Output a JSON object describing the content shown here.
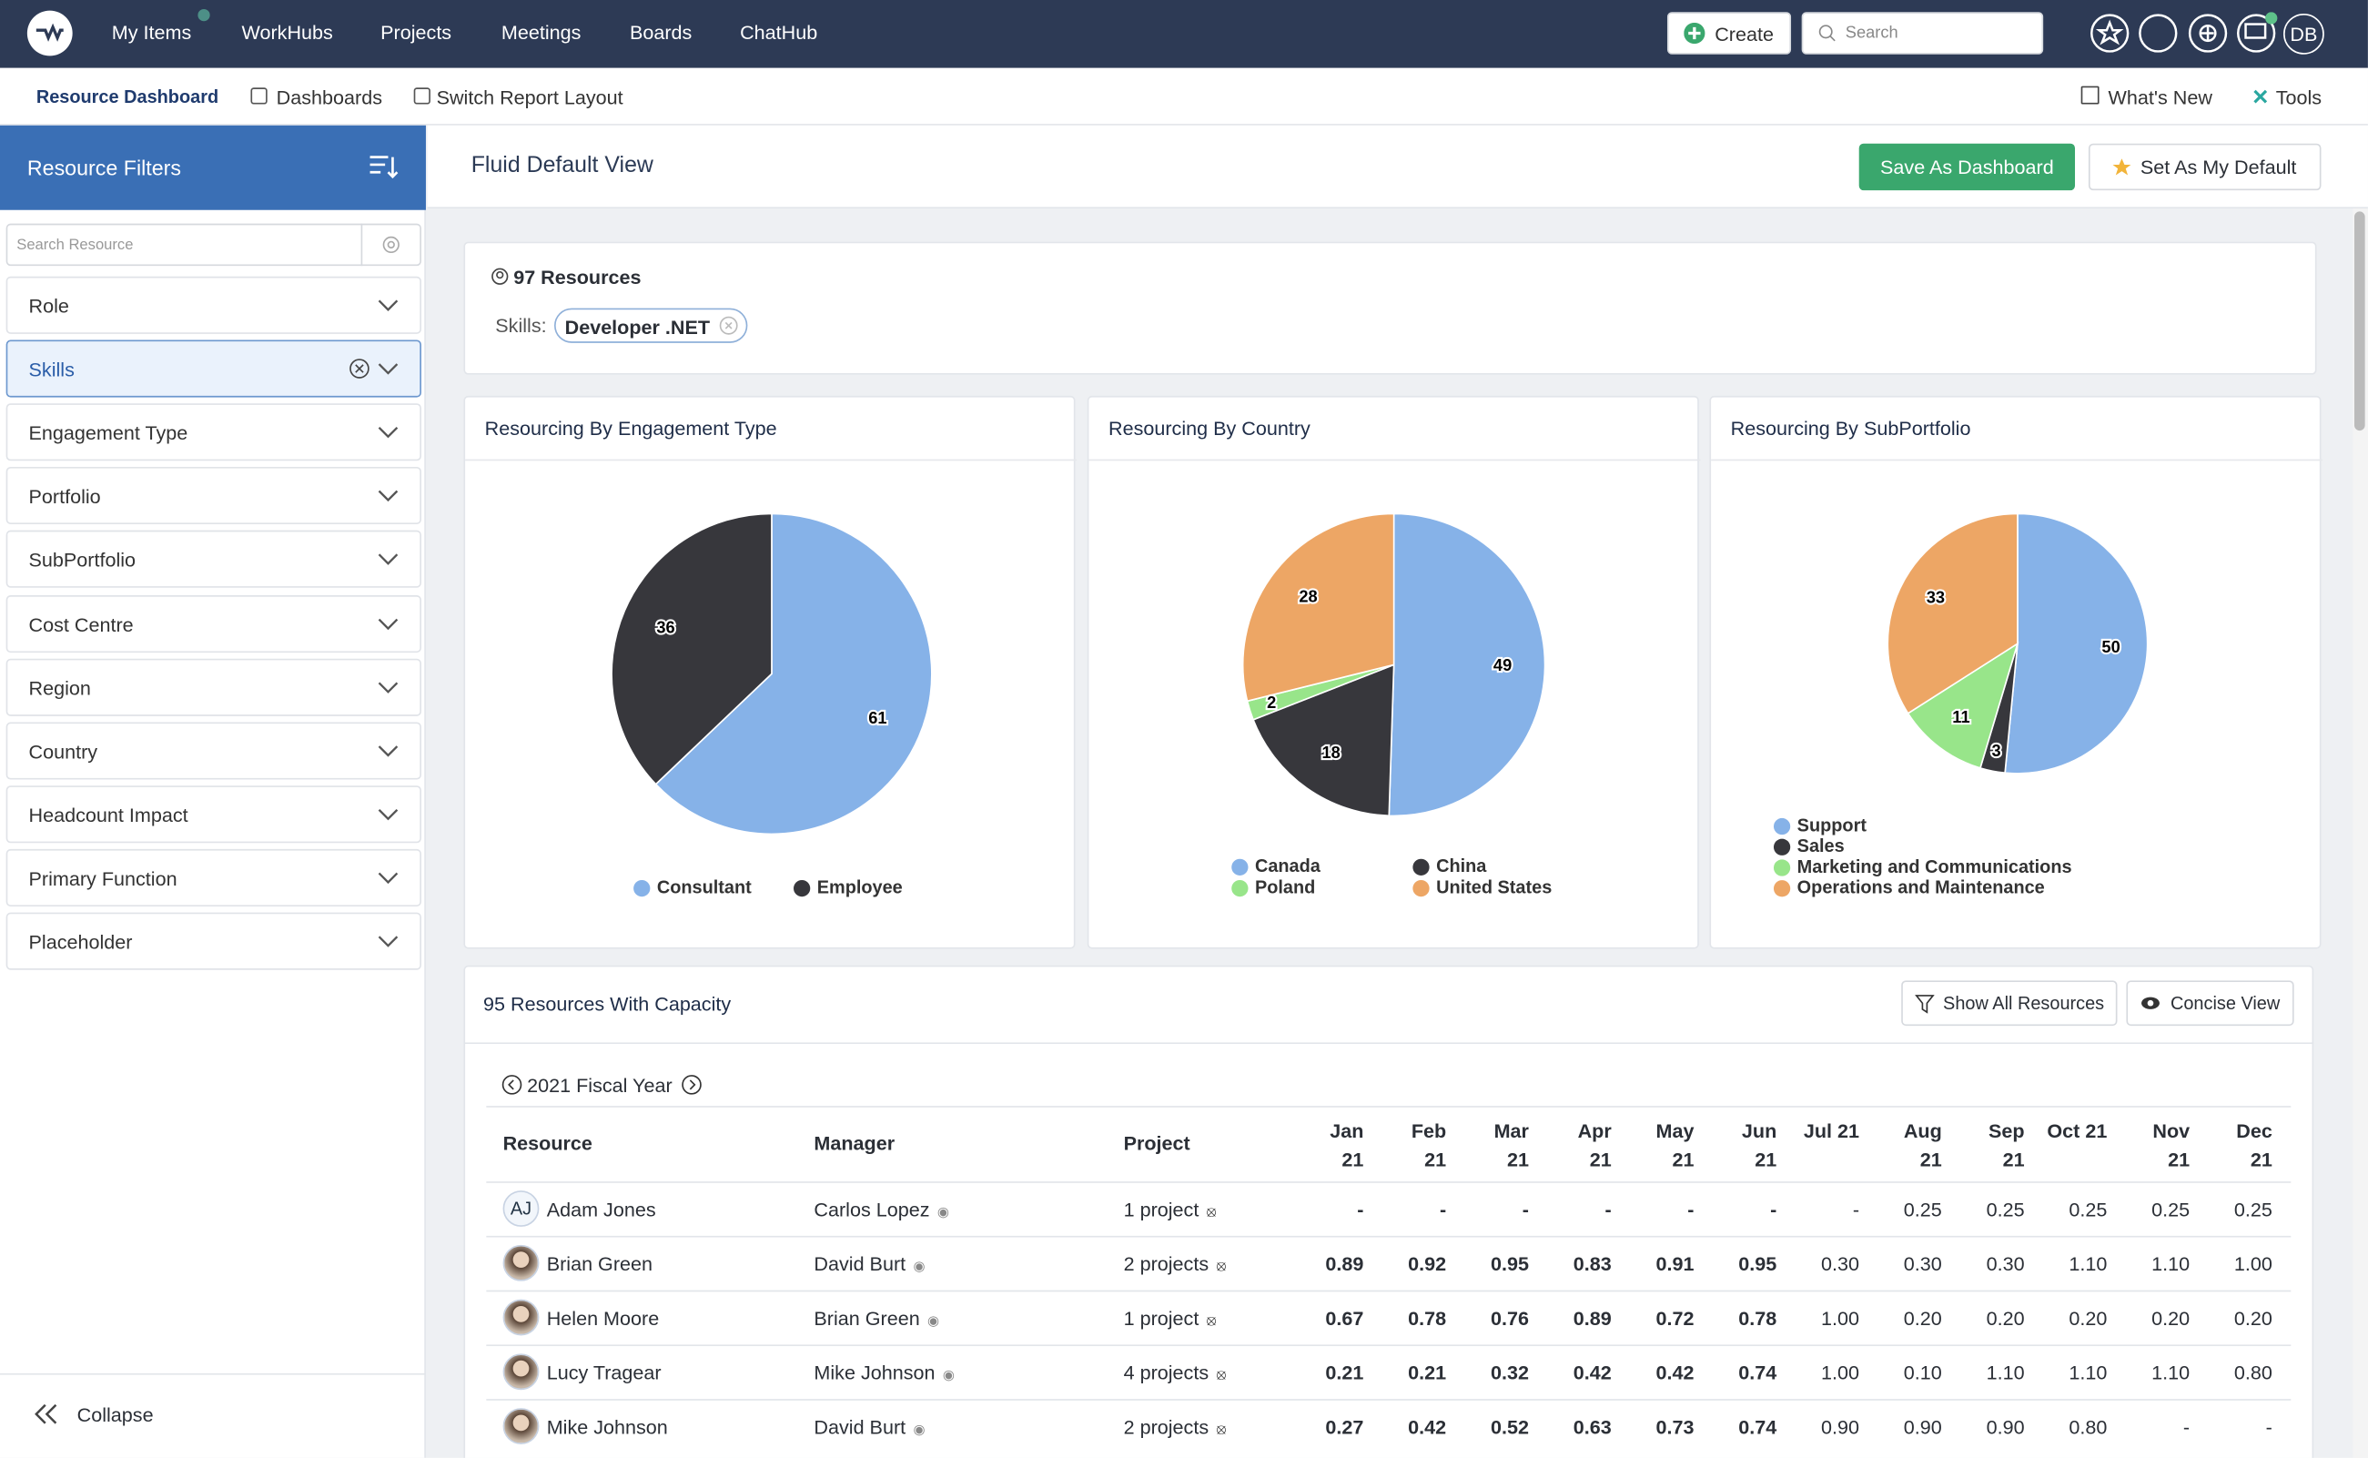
{
  "nav": {
    "items": [
      "My Items",
      "WorkHubs",
      "Projects",
      "Meetings",
      "Boards",
      "ChatHub"
    ],
    "create": "Create",
    "search": "Search",
    "user": "DB"
  },
  "subnav": {
    "left": [
      "Resource Dashboard",
      "Dashboards",
      "Switch Report Layout"
    ],
    "right": [
      "What's New",
      "Tools"
    ]
  },
  "sidebar": {
    "title": "Resource Filters",
    "search_placeholder": "Search Resource",
    "filters": [
      "Role",
      "Skills",
      "Engagement Type",
      "Portfolio",
      "SubPortfolio",
      "Cost Centre",
      "Region",
      "Country",
      "Headcount Impact",
      "Primary Function",
      "Placeholder"
    ],
    "collapse": "Collapse"
  },
  "view": {
    "title": "Fluid Default View",
    "buttons": [
      "Save As Dashboard",
      "Set As My Default"
    ]
  },
  "summary": {
    "count": "97 Resources",
    "skills_label": "Skills:",
    "skill": "Developer .NET"
  },
  "charts": [
    {
      "type": "pie",
      "title": "Resourcing By Engagement Type",
      "categories": [
        "Consultant",
        "Employee"
      ],
      "values": [
        61,
        36
      ],
      "colors": [
        "#86b2e8",
        "#37373c"
      ]
    },
    {
      "type": "pie",
      "title": "Resourcing By Country",
      "categories": [
        "Canada",
        "China",
        "Poland",
        "United States"
      ],
      "values": [
        49,
        18,
        2,
        28
      ],
      "colors": [
        "#86b2e8",
        "#37373c",
        "#98e58a",
        "#eda665"
      ]
    },
    {
      "type": "pie",
      "title": "Resourcing By SubPortfolio",
      "categories": [
        "Support",
        "Sales",
        "Marketing and Communications",
        "Operations and Maintenance"
      ],
      "values": [
        50,
        3,
        11,
        33
      ],
      "colors": [
        "#86b2e8",
        "#37373c",
        "#98e58a",
        "#eda665"
      ]
    }
  ],
  "table": {
    "title": "95 Resources With Capacity",
    "buttons": [
      "Show All Resources",
      "Concise View"
    ],
    "fiscal_year": "2021 Fiscal Year",
    "columns": [
      "Resource",
      "Manager",
      "Project"
    ],
    "months": [
      "Jan 21",
      "Feb 21",
      "Mar 21",
      "Apr 21",
      "May 21",
      "Jun 21",
      "Jul 21",
      "Aug 21",
      "Sep 21",
      "Oct 21",
      "Nov 21",
      "Dec 21"
    ],
    "rows": [
      {
        "avatar": "AJ",
        "resource": "Adam Jones",
        "manager": "Carlos Lopez",
        "project": "1 project",
        "values": [
          "-",
          "-",
          "-",
          "-",
          "-",
          "-",
          "-",
          "0.25",
          "0.25",
          "0.25",
          "0.25",
          "0.25"
        ]
      },
      {
        "resource": "Brian Green",
        "manager": "David Burt",
        "project": "2 projects",
        "values": [
          "0.89",
          "0.92",
          "0.95",
          "0.83",
          "0.91",
          "0.95",
          "0.30",
          "0.30",
          "0.30",
          "1.10",
          "1.10",
          "1.00"
        ]
      },
      {
        "resource": "Helen Moore",
        "manager": "Brian Green",
        "project": "1 project",
        "values": [
          "0.67",
          "0.78",
          "0.76",
          "0.89",
          "0.72",
          "0.78",
          "1.00",
          "0.20",
          "0.20",
          "0.20",
          "0.20",
          "0.20"
        ]
      },
      {
        "resource": "Lucy Tragear",
        "manager": "Mike Johnson",
        "project": "4 projects",
        "values": [
          "0.21",
          "0.21",
          "0.32",
          "0.42",
          "0.42",
          "0.74",
          "1.00",
          "0.10",
          "1.10",
          "1.10",
          "1.10",
          "0.80"
        ]
      },
      {
        "resource": "Mike Johnson",
        "manager": "David Burt",
        "project": "2 projects",
        "values": [
          "0.27",
          "0.42",
          "0.52",
          "0.63",
          "0.73",
          "0.74",
          "0.90",
          "0.90",
          "0.90",
          "0.80",
          "-",
          "-"
        ]
      }
    ]
  }
}
